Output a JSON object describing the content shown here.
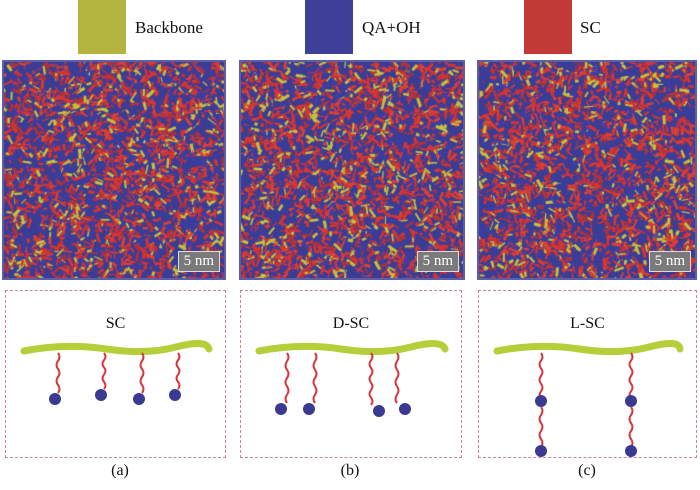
{
  "legend": [
    {
      "label": "Backbone",
      "color": "#b8bd3c"
    },
    {
      "label": "QA+OH",
      "color": "#3b3f9c"
    },
    {
      "label": "SC",
      "color": "#c8302c"
    }
  ],
  "simulations": [
    {
      "scale_label": "5 nm"
    },
    {
      "scale_label": "5 nm"
    },
    {
      "scale_label": "5 nm"
    }
  ],
  "schematics": [
    {
      "title": "SC",
      "panel": "(a)"
    },
    {
      "title": "D-SC",
      "panel": "(b)"
    },
    {
      "title": "L-SC",
      "panel": "(c)"
    }
  ],
  "colors": {
    "backbone": "#b5cf3a",
    "side_chain": "#d8343a",
    "qa": "#3a3a92"
  }
}
